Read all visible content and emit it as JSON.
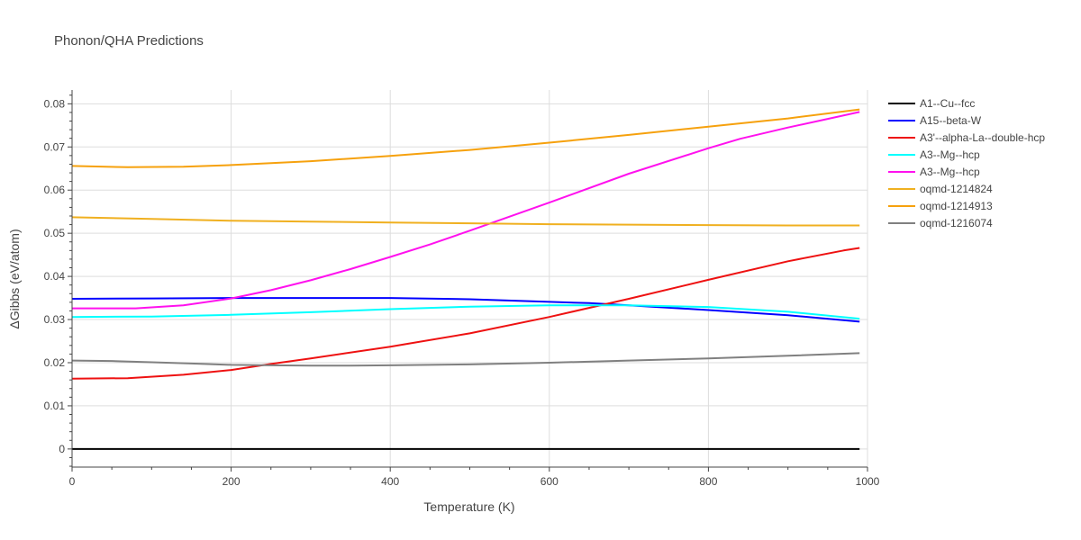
{
  "chart_data": {
    "type": "line",
    "title": "Phonon/QHA Predictions",
    "xlabel": "Temperature (K)",
    "ylabel": "ΔGibbs (eV/atom)",
    "xlim": [
      0,
      1000
    ],
    "ylim": [
      -0.0042,
      0.0832
    ],
    "xticks": [
      0,
      200,
      400,
      600,
      800,
      1000
    ],
    "yticks": [
      0,
      0.01,
      0.02,
      0.03,
      0.04,
      0.05,
      0.06,
      0.07,
      0.08
    ],
    "xtick_labels": [
      "0",
      "200",
      "400",
      "600",
      "800",
      "1000"
    ],
    "ytick_labels": [
      "0",
      "0.01",
      "0.02",
      "0.03",
      "0.04",
      "0.05",
      "0.06",
      "0.07",
      "0.08"
    ],
    "grid": true,
    "legend_position": "right",
    "series": [
      {
        "name": "A1--Cu--fcc",
        "color": "#000000",
        "x": [
          0,
          100,
          200,
          300,
          400,
          500,
          600,
          700,
          800,
          900,
          990
        ],
        "y": [
          0,
          0,
          0,
          0,
          0,
          0,
          0,
          0,
          0,
          0,
          0
        ]
      },
      {
        "name": "A15--beta-W",
        "color": "#0000ff",
        "x": [
          0,
          100,
          200,
          300,
          400,
          500,
          600,
          650,
          700,
          800,
          900,
          990
        ],
        "y": [
          0.0348,
          0.0349,
          0.035,
          0.035,
          0.035,
          0.0347,
          0.0341,
          0.0338,
          0.0333,
          0.0322,
          0.031,
          0.0295
        ]
      },
      {
        "name": "A3'--alpha-La--double-hcp",
        "color": "#ee1111",
        "x": [
          0,
          70,
          140,
          200,
          250,
          300,
          400,
          500,
          600,
          700,
          800,
          900,
          970,
          990
        ],
        "y": [
          0.0163,
          0.0164,
          0.0172,
          0.0183,
          0.0197,
          0.021,
          0.0237,
          0.0268,
          0.0306,
          0.0348,
          0.0392,
          0.0435,
          0.046,
          0.0466
        ]
      },
      {
        "name": "A3--Mg--hcp",
        "color": "#00ffff",
        "x": [
          0,
          100,
          200,
          300,
          400,
          500,
          600,
          700,
          800,
          900,
          990
        ],
        "y": [
          0.0306,
          0.0307,
          0.0311,
          0.0317,
          0.0324,
          0.033,
          0.0333,
          0.0333,
          0.0329,
          0.0318,
          0.0302
        ]
      },
      {
        "name": "A3--Mg--hcp",
        "color": "#ff11ee",
        "x": [
          0,
          80,
          140,
          200,
          250,
          300,
          350,
          400,
          450,
          500,
          560,
          600,
          700,
          800,
          840,
          900,
          950,
          990
        ],
        "y": [
          0.0326,
          0.0326,
          0.0333,
          0.0349,
          0.0368,
          0.0391,
          0.0417,
          0.0445,
          0.0474,
          0.0506,
          0.0545,
          0.0571,
          0.0638,
          0.0697,
          0.0719,
          0.0745,
          0.0765,
          0.0781
        ]
      },
      {
        "name": "oqmd-1214824",
        "color": "#f0b020",
        "x": [
          0,
          100,
          200,
          300,
          400,
          500,
          600,
          700,
          800,
          900,
          990
        ],
        "y": [
          0.0537,
          0.0533,
          0.0529,
          0.0527,
          0.0525,
          0.0523,
          0.0521,
          0.052,
          0.0519,
          0.0518,
          0.0518
        ]
      },
      {
        "name": "oqmd-1214913",
        "color": "#f6a10d",
        "x": [
          0,
          70,
          140,
          200,
          300,
          400,
          500,
          600,
          700,
          800,
          900,
          990
        ],
        "y": [
          0.0656,
          0.0653,
          0.0654,
          0.0658,
          0.0667,
          0.0679,
          0.0693,
          0.071,
          0.0728,
          0.0747,
          0.0766,
          0.0787
        ]
      },
      {
        "name": "oqmd-1216074",
        "color": "#808080",
        "x": [
          0,
          50,
          100,
          150,
          200,
          250,
          300,
          350,
          400,
          450,
          500,
          600,
          700,
          800,
          900,
          990
        ],
        "y": [
          0.0205,
          0.0204,
          0.0201,
          0.0198,
          0.0195,
          0.0194,
          0.0193,
          0.0193,
          0.0194,
          0.0195,
          0.0196,
          0.02,
          0.0205,
          0.021,
          0.0216,
          0.0222
        ]
      }
    ]
  }
}
